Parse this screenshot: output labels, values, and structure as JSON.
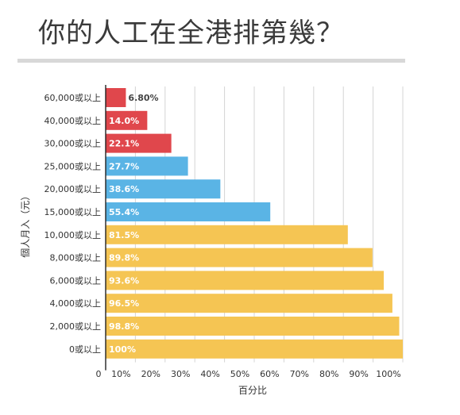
{
  "title": "你的人工在全港排第幾？",
  "chart_data": {
    "type": "bar",
    "orientation": "horizontal",
    "title": "你的人工在全港排第幾？",
    "xlabel": "百分比",
    "ylabel": "個人月入（元）",
    "categories": [
      "60,000或以上",
      "40,000或以上",
      "30,000或以上",
      "25,000或以上",
      "20,000或以上",
      "15,000或以上",
      "10,000或以上",
      "8,000或以上",
      "6,000或以上",
      "4,000或以上",
      "2,000或以上",
      "0或以上"
    ],
    "values": [
      6.8,
      14.0,
      22.1,
      27.7,
      38.6,
      55.4,
      81.5,
      89.8,
      93.6,
      96.5,
      98.8,
      100
    ],
    "value_labels": [
      "6.80%",
      "14.0%",
      "22.1%",
      "27.7%",
      "38.6%",
      "55.4%",
      "81.5%",
      "89.8%",
      "93.6%",
      "96.5%",
      "98.8%",
      "100%"
    ],
    "bar_colors": [
      "#e0474c",
      "#e0474c",
      "#e0474c",
      "#5ab4e5",
      "#5ab4e5",
      "#5ab4e5",
      "#f5c553",
      "#f5c553",
      "#f5c553",
      "#f5c553",
      "#f5c553",
      "#f5c553"
    ],
    "xlim": [
      0,
      100
    ],
    "x_ticks": [
      "0",
      "10%",
      "20%",
      "30%",
      "40%",
      "50%",
      "60%",
      "70%",
      "80%",
      "90%",
      "100%"
    ],
    "grid": true
  }
}
